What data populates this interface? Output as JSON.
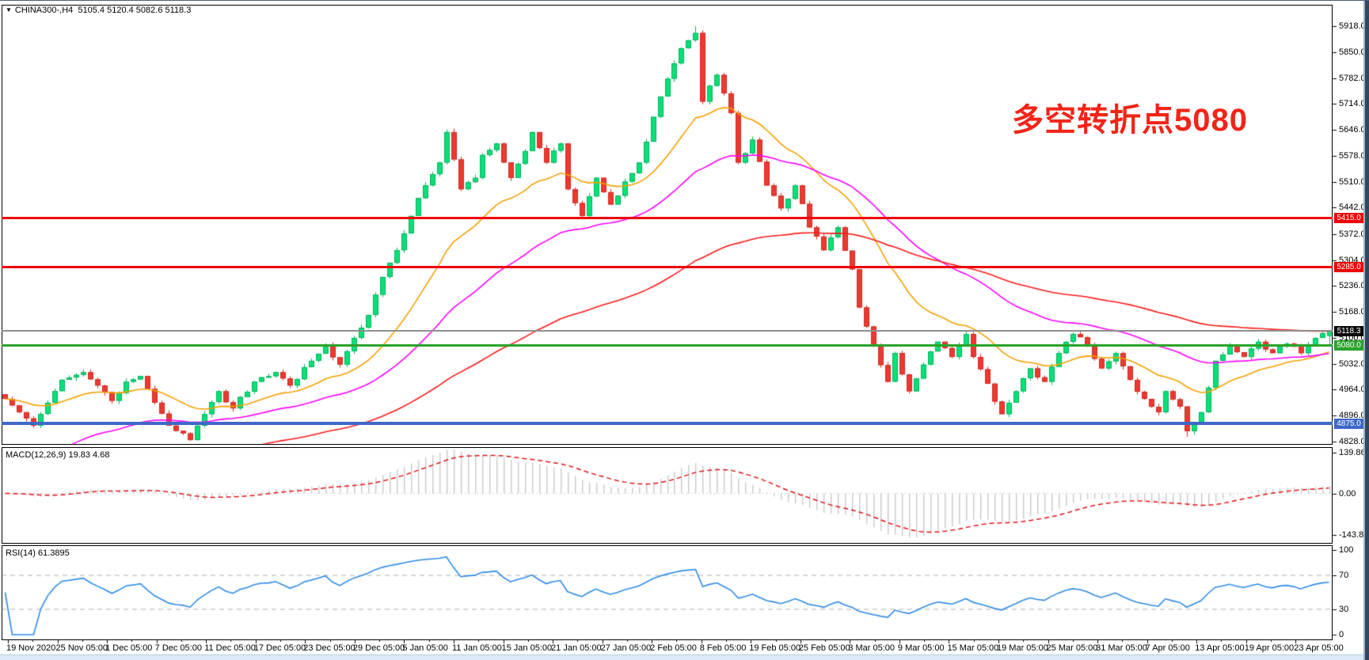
{
  "window": {
    "title_symbol": "CHINA300-,H4",
    "title_ohlc": "5105.4 5120.4 5082.6 5118.3",
    "dropdown_glyph": "▼"
  },
  "annotation": {
    "text": "多空转折点5080",
    "color": "#f22418"
  },
  "main_chart": {
    "y_tick_labels": [
      "5918.0",
      "5850.0",
      "5782.0",
      "5714.0",
      "5646.0",
      "5578.0",
      "5510.0",
      "5442.0",
      "5372.0",
      "5304.0",
      "5236.0",
      "5168.0",
      "5100.0",
      "5032.0",
      "4964.0",
      "4896.0",
      "4828.0"
    ]
  },
  "macd_panel": {
    "label": "MACD(12,26,9) 19.83 4.68",
    "y_tick_labels": [
      "139.86",
      "0.00",
      "-143.82"
    ],
    "y_tick_values": [
      139.86,
      0,
      -143.82
    ]
  },
  "rsi_panel": {
    "label": "RSI(14) 61.3895",
    "y_tick_labels": [
      "100",
      "70",
      "30",
      "0"
    ],
    "y_tick_values": [
      100,
      70,
      30,
      0
    ]
  },
  "time_axis": {
    "labels": [
      "19 Nov 2020",
      "25 Nov 05:00",
      "1 Dec 05:00",
      "7 Dec 05:00",
      "11 Dec 05:00",
      "17 Dec 05:00",
      "23 Dec 05:00",
      "29 Dec 05:00",
      "5 Jan 05:00",
      "11 Jan 05:00",
      "15 Jan 05:00",
      "21 Jan 05:00",
      "27 Jan 05:00",
      "2 Feb 05:00",
      "8 Feb 05:00",
      "19 Feb 05:00",
      "25 Feb 05:00",
      "3 Mar 05:00",
      "9 Mar 05:00",
      "15 Mar 05:00",
      "19 Mar 05:00",
      "25 Mar 05:00",
      "31 Mar 05:00",
      "7 Apr 05:00",
      "13 Apr 05:00",
      "19 Apr 05:00",
      "23 Apr 05:00"
    ]
  },
  "chart_data": {
    "type": "candlestick",
    "symbol": "CHINA300-",
    "timeframe": "H4",
    "bars": 187,
    "price_range": [
      4828.0,
      5918.0
    ],
    "close_anchors": [
      [
        0,
        4940
      ],
      [
        2,
        4905
      ],
      [
        4,
        4870
      ],
      [
        6,
        4930
      ],
      [
        8,
        4990
      ],
      [
        11,
        5010
      ],
      [
        13,
        4975
      ],
      [
        15,
        4935
      ],
      [
        17,
        4985
      ],
      [
        19,
        5000
      ],
      [
        21,
        4930
      ],
      [
        23,
        4870
      ],
      [
        26,
        4832
      ],
      [
        28,
        4900
      ],
      [
        30,
        4960
      ],
      [
        32,
        4915
      ],
      [
        35,
        4985
      ],
      [
        38,
        5010
      ],
      [
        40,
        4975
      ],
      [
        43,
        5040
      ],
      [
        45,
        5080
      ],
      [
        47,
        5030
      ],
      [
        49,
        5100
      ],
      [
        51,
        5160
      ],
      [
        53,
        5260
      ],
      [
        55,
        5330
      ],
      [
        57,
        5420
      ],
      [
        59,
        5500
      ],
      [
        61,
        5560
      ],
      [
        62,
        5640
      ],
      [
        64,
        5490
      ],
      [
        66,
        5520
      ],
      [
        67,
        5580
      ],
      [
        69,
        5610
      ],
      [
        71,
        5520
      ],
      [
        73,
        5590
      ],
      [
        74,
        5640
      ],
      [
        76,
        5560
      ],
      [
        78,
        5610
      ],
      [
        79,
        5490
      ],
      [
        81,
        5420
      ],
      [
        83,
        5520
      ],
      [
        85,
        5450
      ],
      [
        87,
        5510
      ],
      [
        89,
        5560
      ],
      [
        91,
        5680
      ],
      [
        93,
        5780
      ],
      [
        95,
        5860
      ],
      [
        97,
        5900
      ],
      [
        98,
        5720
      ],
      [
        100,
        5790
      ],
      [
        102,
        5690
      ],
      [
        103,
        5560
      ],
      [
        105,
        5620
      ],
      [
        107,
        5500
      ],
      [
        109,
        5440
      ],
      [
        111,
        5500
      ],
      [
        113,
        5390
      ],
      [
        115,
        5330
      ],
      [
        117,
        5390
      ],
      [
        119,
        5280
      ],
      [
        120,
        5180
      ],
      [
        122,
        5080
      ],
      [
        124,
        4985
      ],
      [
        125,
        5060
      ],
      [
        127,
        4960
      ],
      [
        129,
        5030
      ],
      [
        131,
        5090
      ],
      [
        133,
        5050
      ],
      [
        135,
        5110
      ],
      [
        136,
        5050
      ],
      [
        138,
        4980
      ],
      [
        140,
        4900
      ],
      [
        142,
        4960
      ],
      [
        144,
        5020
      ],
      [
        146,
        4985
      ],
      [
        148,
        5060
      ],
      [
        150,
        5110
      ],
      [
        152,
        5080
      ],
      [
        154,
        5020
      ],
      [
        156,
        5060
      ],
      [
        158,
        4990
      ],
      [
        160,
        4940
      ],
      [
        162,
        4905
      ],
      [
        163,
        4960
      ],
      [
        165,
        4920
      ],
      [
        166,
        4855
      ],
      [
        168,
        4905
      ],
      [
        170,
        5040
      ],
      [
        172,
        5080
      ],
      [
        174,
        5050
      ],
      [
        176,
        5090
      ],
      [
        178,
        5060
      ],
      [
        180,
        5085
      ],
      [
        182,
        5060
      ],
      [
        184,
        5100
      ],
      [
        186,
        5118.3
      ]
    ],
    "high_extreme": {
      "index": 97,
      "price": 5918.0
    },
    "low_extremes": [
      {
        "index": 26,
        "price": 4830.0
      },
      {
        "index": 166,
        "price": 4840.0
      }
    ],
    "last_bar": {
      "open": 5105.4,
      "high": 5120.4,
      "low": 5082.6,
      "close": 5118.3
    },
    "noise": {
      "seed": 11,
      "close_amp": 7,
      "wick_amp": 9
    },
    "candle_up": {
      "fill": "#0be078",
      "border": "#00b55e"
    },
    "candle_down": {
      "fill": "#ea3a31",
      "border": "#d32a22"
    },
    "moving_averages": [
      {
        "name": "fast-ma",
        "color": "#f5a000",
        "alpha": 0.1,
        "seed": null
      },
      {
        "name": "mid-ma",
        "color": "#ff00ff",
        "alpha": 0.045,
        "seed": 4750
      },
      {
        "name": "slow-ma",
        "color": "#ff1a1a",
        "alpha": 0.02,
        "seed": 4690
      }
    ],
    "horizontal_levels": [
      {
        "price": 5415.0,
        "label": "5415.0",
        "color": "#f00000",
        "thickness": 3
      },
      {
        "price": 5285.0,
        "label": "5285.0",
        "color": "#f00000",
        "thickness": 3
      },
      {
        "price": 5080.0,
        "label": "5080.0",
        "color": "#2ba32b",
        "thickness": 3
      },
      {
        "price": 4875.0,
        "label": "4875.0",
        "color": "#3e68c8",
        "thickness": 4
      }
    ],
    "current_price": {
      "value": 5118.3,
      "label": "5118.3",
      "line_color": "#8f8f8f",
      "badge_color": "#0a0a0a"
    },
    "macd": {
      "fast": 12,
      "slow": 26,
      "signal": 9,
      "main_value": 19.83,
      "signal_value": 4.68,
      "ylim": [
        -143.82,
        139.86
      ],
      "hist_color": "#c8c8c8",
      "signal_color": "#e01414"
    },
    "rsi": {
      "period": 14,
      "value": 61.3895,
      "color": "#2e8be6",
      "levels": [
        70,
        30
      ],
      "ylim": [
        0,
        100
      ]
    }
  }
}
